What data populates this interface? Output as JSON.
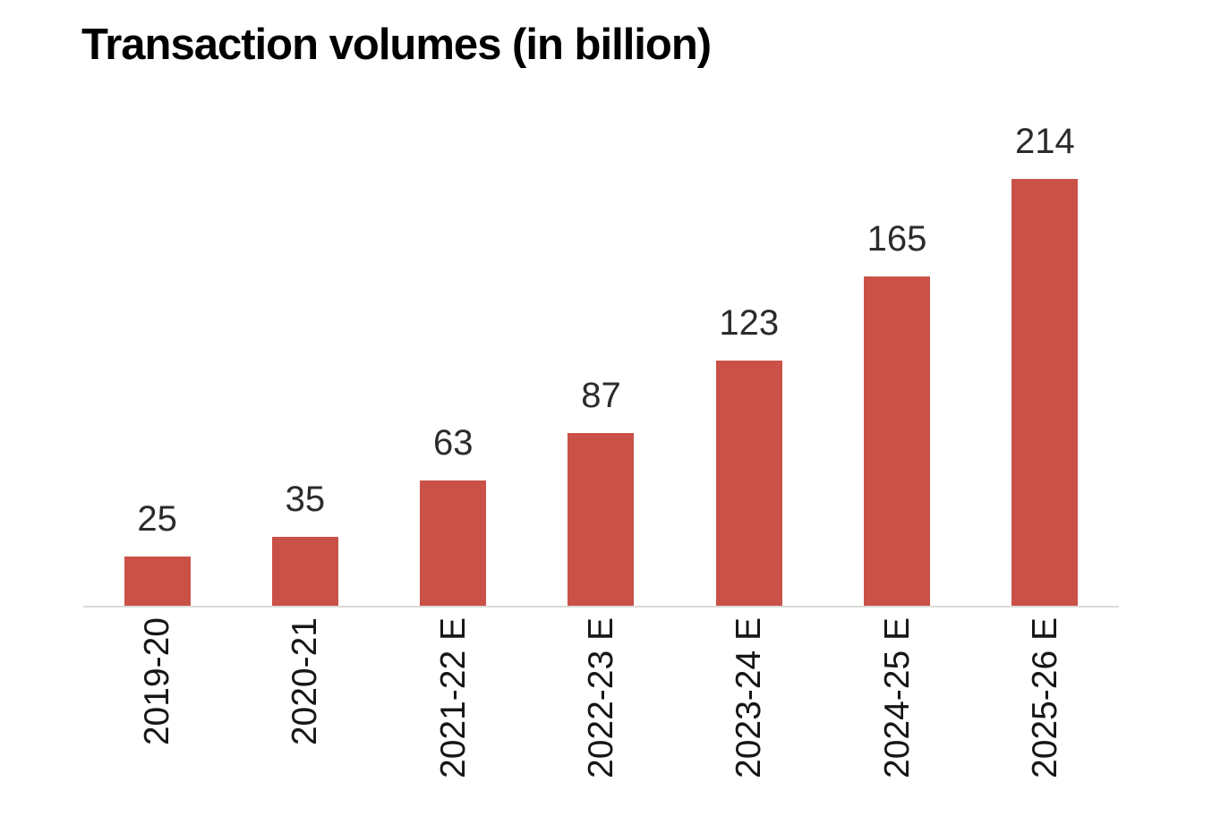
{
  "chart_data": {
    "type": "bar",
    "title": "Transaction volumes (in billion)",
    "categories": [
      "2019-20",
      "2020-21",
      "2021-22 E",
      "2022-23 E",
      "2023-24 E",
      "2024-25 E",
      "2025-26 E"
    ],
    "values": [
      25,
      35,
      63,
      87,
      123,
      165,
      214
    ],
    "xlabel": "",
    "ylabel": "",
    "ylim": [
      0,
      214
    ],
    "grid": false,
    "legend": false,
    "value_labels_shown": true,
    "x_label_orientation": "vertical-bottom-to-top",
    "bar_color": "#CA5148",
    "axis_line_color": "#DCDCD7",
    "value_label_color": "#2B2B2B",
    "x_label_color": "#161616",
    "title_color": "#000000",
    "background_color": "#FFFFFF"
  }
}
